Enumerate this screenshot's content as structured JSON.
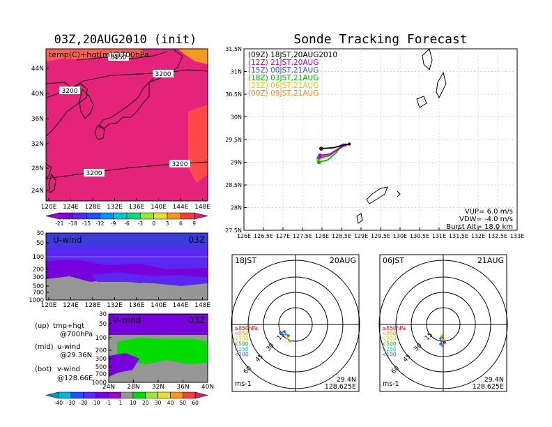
{
  "left": {
    "title": "03Z,20AUG2010 (init)",
    "top_panel": {
      "label": "temp(C)+hgt(m)@700hPa",
      "lon_ticks": [
        "120E",
        "124E",
        "128E",
        "132E",
        "136E",
        "140E",
        "144E",
        "148E"
      ],
      "lat_ticks": [
        "44N",
        "40N",
        "36N",
        "32N",
        "28N",
        "24N"
      ],
      "contour_labels": [
        "3150",
        "3200",
        "3200",
        "3200",
        "3200",
        "3200"
      ]
    },
    "temp_colorbar": [
      "-21",
      "-18",
      "-15",
      "-12",
      "-9",
      "-6",
      "-3",
      "0",
      "3",
      "6",
      "9"
    ],
    "temp_colors": [
      "#a000c8",
      "#7800dc",
      "#5a28f0",
      "#1e50ff",
      "#0096ff",
      "#00c8c8",
      "#00dc82",
      "#a0e632",
      "#e6dc32",
      "#fa9614",
      "#ff3c3c",
      "#e0206e"
    ],
    "uwind_panel": {
      "label": "U-wind",
      "time": "03Z",
      "p_ticks": [
        "30",
        "50",
        "100",
        "200",
        "300",
        "500",
        "700",
        "1000"
      ],
      "lon_ticks": [
        "120E",
        "124E",
        "128E",
        "132E",
        "136E",
        "140E",
        "144E",
        "148E"
      ]
    },
    "vwind_panel": {
      "label": "V-wind",
      "time": "03Z",
      "p_ticks": [
        "30",
        "50",
        "100",
        "200",
        "300",
        "500",
        "700",
        "1000"
      ],
      "lat_ticks": [
        "24N",
        "28N",
        "32N",
        "36N",
        "40N"
      ]
    },
    "notes": [
      {
        "key": "(up)",
        "value": "tmp+hgt",
        "sub": "@700hPa"
      },
      {
        "key": "(mid)",
        "value": "u-wind",
        "sub": "@29.36N"
      },
      {
        "key": "(bot)",
        "value": "v-wind",
        "sub": "@128.66E"
      }
    ],
    "wind_colorbar": [
      "-40",
      "-30",
      "-20",
      "-10",
      "-1",
      "1",
      "10",
      "20",
      "30",
      "40",
      "50",
      "60"
    ],
    "wind_colors": [
      "#0096c8",
      "#00b4dc",
      "#1e50ff",
      "#5a28f0",
      "#7800dc",
      "#a000c8",
      "#969696",
      "#00dc00",
      "#a0e632",
      "#e6dc32",
      "#fa9614",
      "#ff3c3c",
      "#e0206e"
    ]
  },
  "chart_data": [
    {
      "type": "line",
      "title": "Sonde Tracking Forecast",
      "xlim": [
        126,
        133
      ],
      "ylim": [
        27.5,
        31.5
      ],
      "x_ticks": [
        "126E",
        "126.5E",
        "127E",
        "127.5E",
        "128E",
        "128.5E",
        "129E",
        "129.5E",
        "130E",
        "130.5E",
        "131E",
        "131.5E",
        "132E",
        "132.5E",
        "133E"
      ],
      "y_ticks": [
        "27.5N",
        "28N",
        "28.5N",
        "29N",
        "29.5N",
        "30N",
        "30.5N",
        "31N",
        "31.5N"
      ],
      "legend": [
        {
          "label": "(09Z)  18JST,20AUG2010",
          "color": "#000000"
        },
        {
          "label": "(12Z)  21JST,20AUG",
          "color": "#b400b4"
        },
        {
          "label": "(15Z)  00JST,21AUG",
          "color": "#3c50ff"
        },
        {
          "label": "(18Z)  03JST,21AUG",
          "color": "#00b400"
        },
        {
          "label": "(21Z)  06JST,21AUG",
          "color": "#e6c800"
        },
        {
          "label": "(00Z)  09JST,21AUG",
          "color": "#f08c1e"
        }
      ],
      "series": [
        {
          "name": "(09Z)  18JST,20AUG2010",
          "color": "#000000",
          "points": [
            [
              127.98,
              29.3
            ],
            [
              128.3,
              29.32
            ],
            [
              128.55,
              29.38
            ],
            [
              128.7,
              29.4
            ]
          ]
        },
        {
          "name": "(12Z)  21JST,20AUG",
          "color": "#b400b4",
          "points": [
            [
              127.95,
              29.15
            ],
            [
              128.2,
              29.18
            ],
            [
              128.45,
              29.3
            ],
            [
              128.6,
              29.38
            ]
          ]
        },
        {
          "name": "(15Z)  00JST,21AUG",
          "color": "#3c50ff",
          "points": [
            [
              127.92,
              29.1
            ],
            [
              128.2,
              29.15
            ],
            [
              128.4,
              29.28
            ],
            [
              128.55,
              29.38
            ]
          ]
        },
        {
          "name": "(18Z)  03JST,21AUG",
          "color": "#00b400",
          "points": [
            [
              127.92,
              29.0
            ],
            [
              128.15,
              29.05
            ],
            [
              128.35,
              29.2
            ],
            [
              128.5,
              29.36
            ]
          ]
        },
        {
          "name": "(21Z)  06JST,21AUG",
          "color": "#e6c800",
          "points": [
            [
              127.9,
              29.05
            ],
            [
              128.15,
              29.12
            ],
            [
              128.35,
              29.25
            ],
            [
              128.5,
              29.36
            ]
          ]
        },
        {
          "name": "(00Z)  09JST,21AUG",
          "color": "#f08c1e",
          "points": [
            [
              127.9,
              29.08
            ],
            [
              128.15,
              29.15
            ],
            [
              128.4,
              29.3
            ],
            [
              128.55,
              29.38
            ]
          ]
        }
      ],
      "info": [
        "VUP=  6.0  m/s",
        "VDW= -4.0  m/s",
        "Burst Alt=  18.0  km"
      ]
    },
    {
      "type": "scatter",
      "hodographs": [
        {
          "time": "18JST",
          "date": "20AUG",
          "lat": "29.4N",
          "lon": "128.625E",
          "unit": "ms-1",
          "rings": [
            "15",
            "30",
            "45",
            "60"
          ],
          "levels": [
            {
              "label": "≥850hPa",
              "color": "#ff0000"
            },
            {
              "label": "<850",
              "color": "#ff8c00"
            },
            {
              "label": "<700",
              "color": "#e6c800"
            },
            {
              "label": "<500",
              "color": "#00b400"
            },
            {
              "label": "<250",
              "color": "#00c8c8"
            },
            {
              "label": "<100",
              "color": "#3c50ff"
            }
          ]
        },
        {
          "time": "06JST",
          "date": "21AUG",
          "lat": "29.4N",
          "lon": "128.625E",
          "unit": "ms-1",
          "rings": [
            "15",
            "30",
            "45",
            "60"
          ],
          "levels": [
            {
              "label": "≥850hPa",
              "color": "#ff0000"
            },
            {
              "label": "<850",
              "color": "#ff8c00"
            },
            {
              "label": "<700",
              "color": "#e6c800"
            },
            {
              "label": "<500",
              "color": "#00b400"
            },
            {
              "label": "<250",
              "color": "#00c8c8"
            },
            {
              "label": "<100",
              "color": "#3c50ff"
            }
          ]
        }
      ]
    }
  ]
}
